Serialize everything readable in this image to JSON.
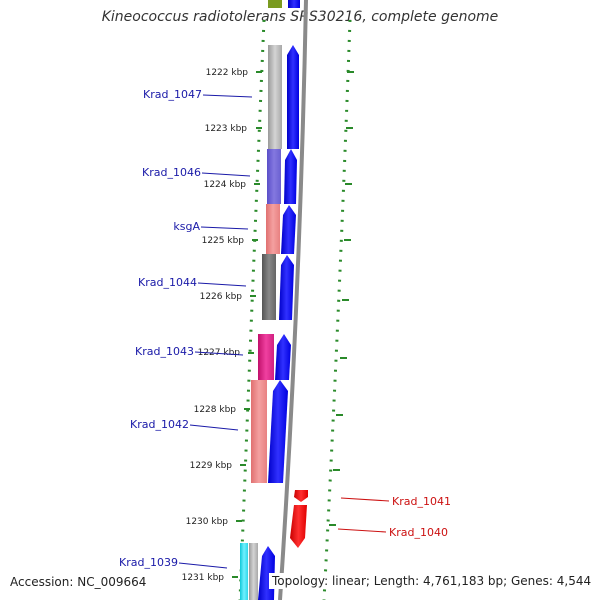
{
  "title": "Kineococcus radiotolerans SRS30216, complete genome",
  "footer": {
    "accession": "Accession: NC_009664",
    "summary": "Topology: linear; Length: 4,761,183 bp; Genes: 4,544"
  },
  "scale_ticks": [
    "1222 kbp",
    "1223 kbp",
    "1224 kbp",
    "1225 kbp",
    "1226 kbp",
    "1227 kbp",
    "1228 kbp",
    "1229 kbp",
    "1230 kbp",
    "1231 kbp"
  ],
  "gene_labels": [
    {
      "name": "Krad_1047",
      "strand": "forward",
      "color": "#1a1aa8"
    },
    {
      "name": "Krad_1046",
      "strand": "forward",
      "color": "#1a1aa8"
    },
    {
      "name": "ksgA",
      "strand": "forward",
      "color": "#1a1aa8"
    },
    {
      "name": "Krad_1044",
      "strand": "forward",
      "color": "#1a1aa8"
    },
    {
      "name": "Krad_1043",
      "strand": "forward",
      "color": "#1a1aa8"
    },
    {
      "name": "Krad_1042",
      "strand": "forward",
      "color": "#1a1aa8"
    },
    {
      "name": "Krad_1041",
      "strand": "reverse",
      "color": "#cc1111"
    },
    {
      "name": "Krad_1040",
      "strand": "reverse",
      "color": "#cc1111"
    },
    {
      "name": "Krad_1039",
      "strand": "forward",
      "color": "#1a1aa8"
    }
  ],
  "colors": {
    "forward_gene": "#0000ff",
    "reverse_gene": "#ff0000",
    "backbone": "#8a8a8a",
    "tick_marks": "#2a8a2a"
  }
}
